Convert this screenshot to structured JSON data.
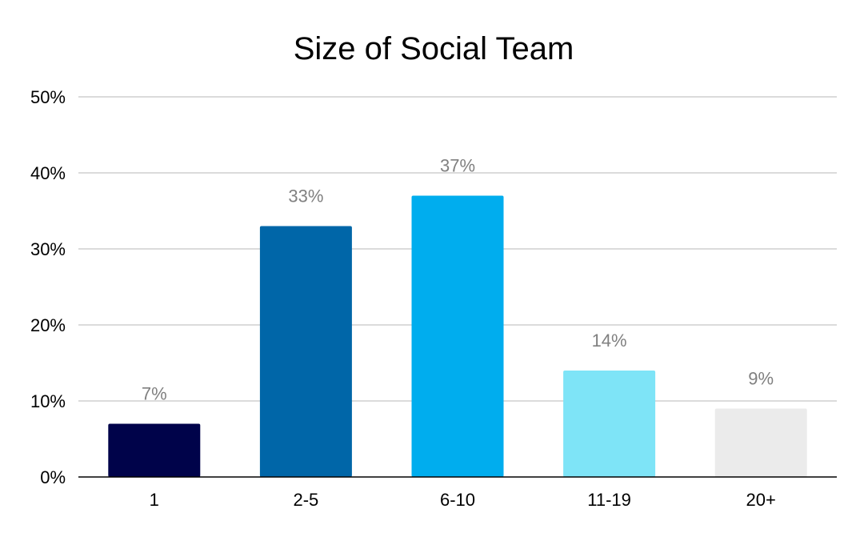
{
  "chart_data": {
    "type": "bar",
    "title": "Size of Social Team",
    "xlabel": "",
    "ylabel": "",
    "categories": [
      "1",
      "2-5",
      "6-10",
      "11-19",
      "20+"
    ],
    "values": [
      7,
      33,
      37,
      14,
      9
    ],
    "data_labels": [
      "7%",
      "33%",
      "37%",
      "14%",
      "9%"
    ],
    "bar_colors": [
      "#00034a",
      "#0066a8",
      "#00adee",
      "#7ee4f7",
      "#ebebeb"
    ],
    "ylim": [
      0,
      50
    ],
    "yticks": [
      0,
      10,
      20,
      30,
      40,
      50
    ],
    "ytick_labels": [
      "0%",
      "10%",
      "20%",
      "30%",
      "40%",
      "50%"
    ],
    "grid": true,
    "legend": "none"
  }
}
